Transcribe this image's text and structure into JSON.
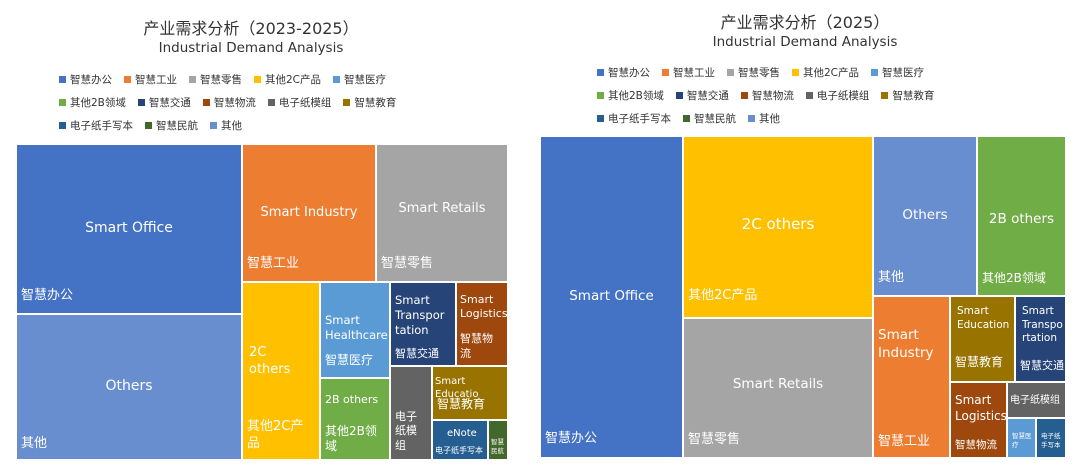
{
  "chart_data": [
    {
      "type": "treemap",
      "title": "产业需求分析（2023-2025）",
      "subtitle": "Industrial Demand Analysis",
      "legend": [
        {
          "name": "智慧办公",
          "color": "#4472c4"
        },
        {
          "name": "智慧工业",
          "color": "#ed7d31"
        },
        {
          "name": "智慧零售",
          "color": "#a5a5a5"
        },
        {
          "name": "其他2C产品",
          "color": "#ffc000"
        },
        {
          "name": "智慧医疗",
          "color": "#5b9bd5"
        },
        {
          "name": "其他2B领域",
          "color": "#70ad47"
        },
        {
          "name": "智慧交通",
          "color": "#264478"
        },
        {
          "name": "智慧物流",
          "color": "#9e480e"
        },
        {
          "name": "电子纸模组",
          "color": "#636363"
        },
        {
          "name": "智慧教育",
          "color": "#997300"
        },
        {
          "name": "电子纸手写本",
          "color": "#255e91"
        },
        {
          "name": "智慧民航",
          "color": "#43682b"
        },
        {
          "name": "其他",
          "color": "#698ed0"
        }
      ],
      "legend_rows": [
        5,
        5,
        3
      ],
      "cells": [
        {
          "id": "smart-office",
          "en": "Smart Office",
          "cn": "智慧办公",
          "color": "#4472c4"
        },
        {
          "id": "others",
          "en": "Others",
          "cn": "其他",
          "color": "#698ed0"
        },
        {
          "id": "smart-industry",
          "en": "Smart Industry",
          "cn": "智慧工业",
          "color": "#ed7d31"
        },
        {
          "id": "smart-retails",
          "en": "Smart Retails",
          "cn": "智慧零售",
          "color": "#a5a5a5"
        },
        {
          "id": "2c-others",
          "en": "2C\nothers",
          "cn": "其他2C产\n品",
          "color": "#ffc000"
        },
        {
          "id": "smart-healthcare",
          "en": "Smart\nHealthcare",
          "cn": "智慧医疗",
          "color": "#5b9bd5"
        },
        {
          "id": "smart-transportation",
          "en": "Smart\nTranspor\ntation",
          "cn": "智慧交通",
          "color": "#264478"
        },
        {
          "id": "smart-logistics",
          "en": "Smart\nLogistics",
          "cn": "智慧物\n流",
          "color": "#9e480e"
        },
        {
          "id": "2b-others",
          "en": "2B others",
          "cn": "其他2B领\n域",
          "color": "#70ad47"
        },
        {
          "id": "e-paper-module",
          "en": "",
          "cn": "电子\n纸模\n组",
          "color": "#636363"
        },
        {
          "id": "smart-education",
          "en": "Smart Educatio",
          "cn": "智慧教育",
          "color": "#997300"
        },
        {
          "id": "enote",
          "en": "eNote",
          "cn": "电子纸手写本",
          "color": "#255e91"
        },
        {
          "id": "smart-aviation",
          "en": "",
          "cn": "智慧\n民航",
          "color": "#43682b"
        }
      ]
    },
    {
      "type": "treemap",
      "title": "产业需求分析（2025）",
      "subtitle": "Industrial Demand Analysis",
      "legend": [
        {
          "name": "智慧办公",
          "color": "#4472c4"
        },
        {
          "name": "智慧工业",
          "color": "#ed7d31"
        },
        {
          "name": "智慧零售",
          "color": "#a5a5a5"
        },
        {
          "name": "其他2C产品",
          "color": "#ffc000"
        },
        {
          "name": "智慧医疗",
          "color": "#5b9bd5"
        },
        {
          "name": "其他2B领域",
          "color": "#70ad47"
        },
        {
          "name": "智慧交通",
          "color": "#264478"
        },
        {
          "name": "智慧物流",
          "color": "#9e480e"
        },
        {
          "name": "电子纸模组",
          "color": "#636363"
        },
        {
          "name": "智慧教育",
          "color": "#997300"
        },
        {
          "name": "电子纸手写本",
          "color": "#255e91"
        },
        {
          "name": "智慧民航",
          "color": "#43682b"
        },
        {
          "name": "其他",
          "color": "#698ed0"
        }
      ],
      "legend_rows": [
        5,
        5,
        3
      ],
      "cells": [
        {
          "id": "smart-office",
          "en": "Smart Office",
          "cn": "智慧办公",
          "color": "#4472c4"
        },
        {
          "id": "2c-others",
          "en": "2C others",
          "cn": "其他2C产品",
          "color": "#ffc000"
        },
        {
          "id": "smart-retails",
          "en": "Smart Retails",
          "cn": "智慧零售",
          "color": "#a5a5a5"
        },
        {
          "id": "others",
          "en": "Others",
          "cn": "其他",
          "color": "#698ed0"
        },
        {
          "id": "2b-others",
          "en": "2B others",
          "cn": "其他2B领域",
          "color": "#70ad47"
        },
        {
          "id": "smart-industry",
          "en": "Smart\nIndustry",
          "cn": "智慧工业",
          "color": "#ed7d31"
        },
        {
          "id": "smart-education",
          "en": "Smart\nEducation",
          "cn": "智慧教育",
          "color": "#997300"
        },
        {
          "id": "smart-transportation",
          "en": "Smart\nTranspo\nrtation",
          "cn": "智慧交通",
          "color": "#264478"
        },
        {
          "id": "smart-logistics",
          "en": "Smart\nLogistics",
          "cn": "智慧物流",
          "color": "#9e480e"
        },
        {
          "id": "e-paper-module",
          "en": "",
          "cn": "电子纸模组",
          "color": "#636363"
        },
        {
          "id": "smart-healthcare",
          "en": "",
          "cn": "智慧医\n疗",
          "color": "#5b9bd5"
        },
        {
          "id": "enote",
          "en": "",
          "cn": "电子纸\n手写本",
          "color": "#255e91"
        }
      ]
    }
  ]
}
